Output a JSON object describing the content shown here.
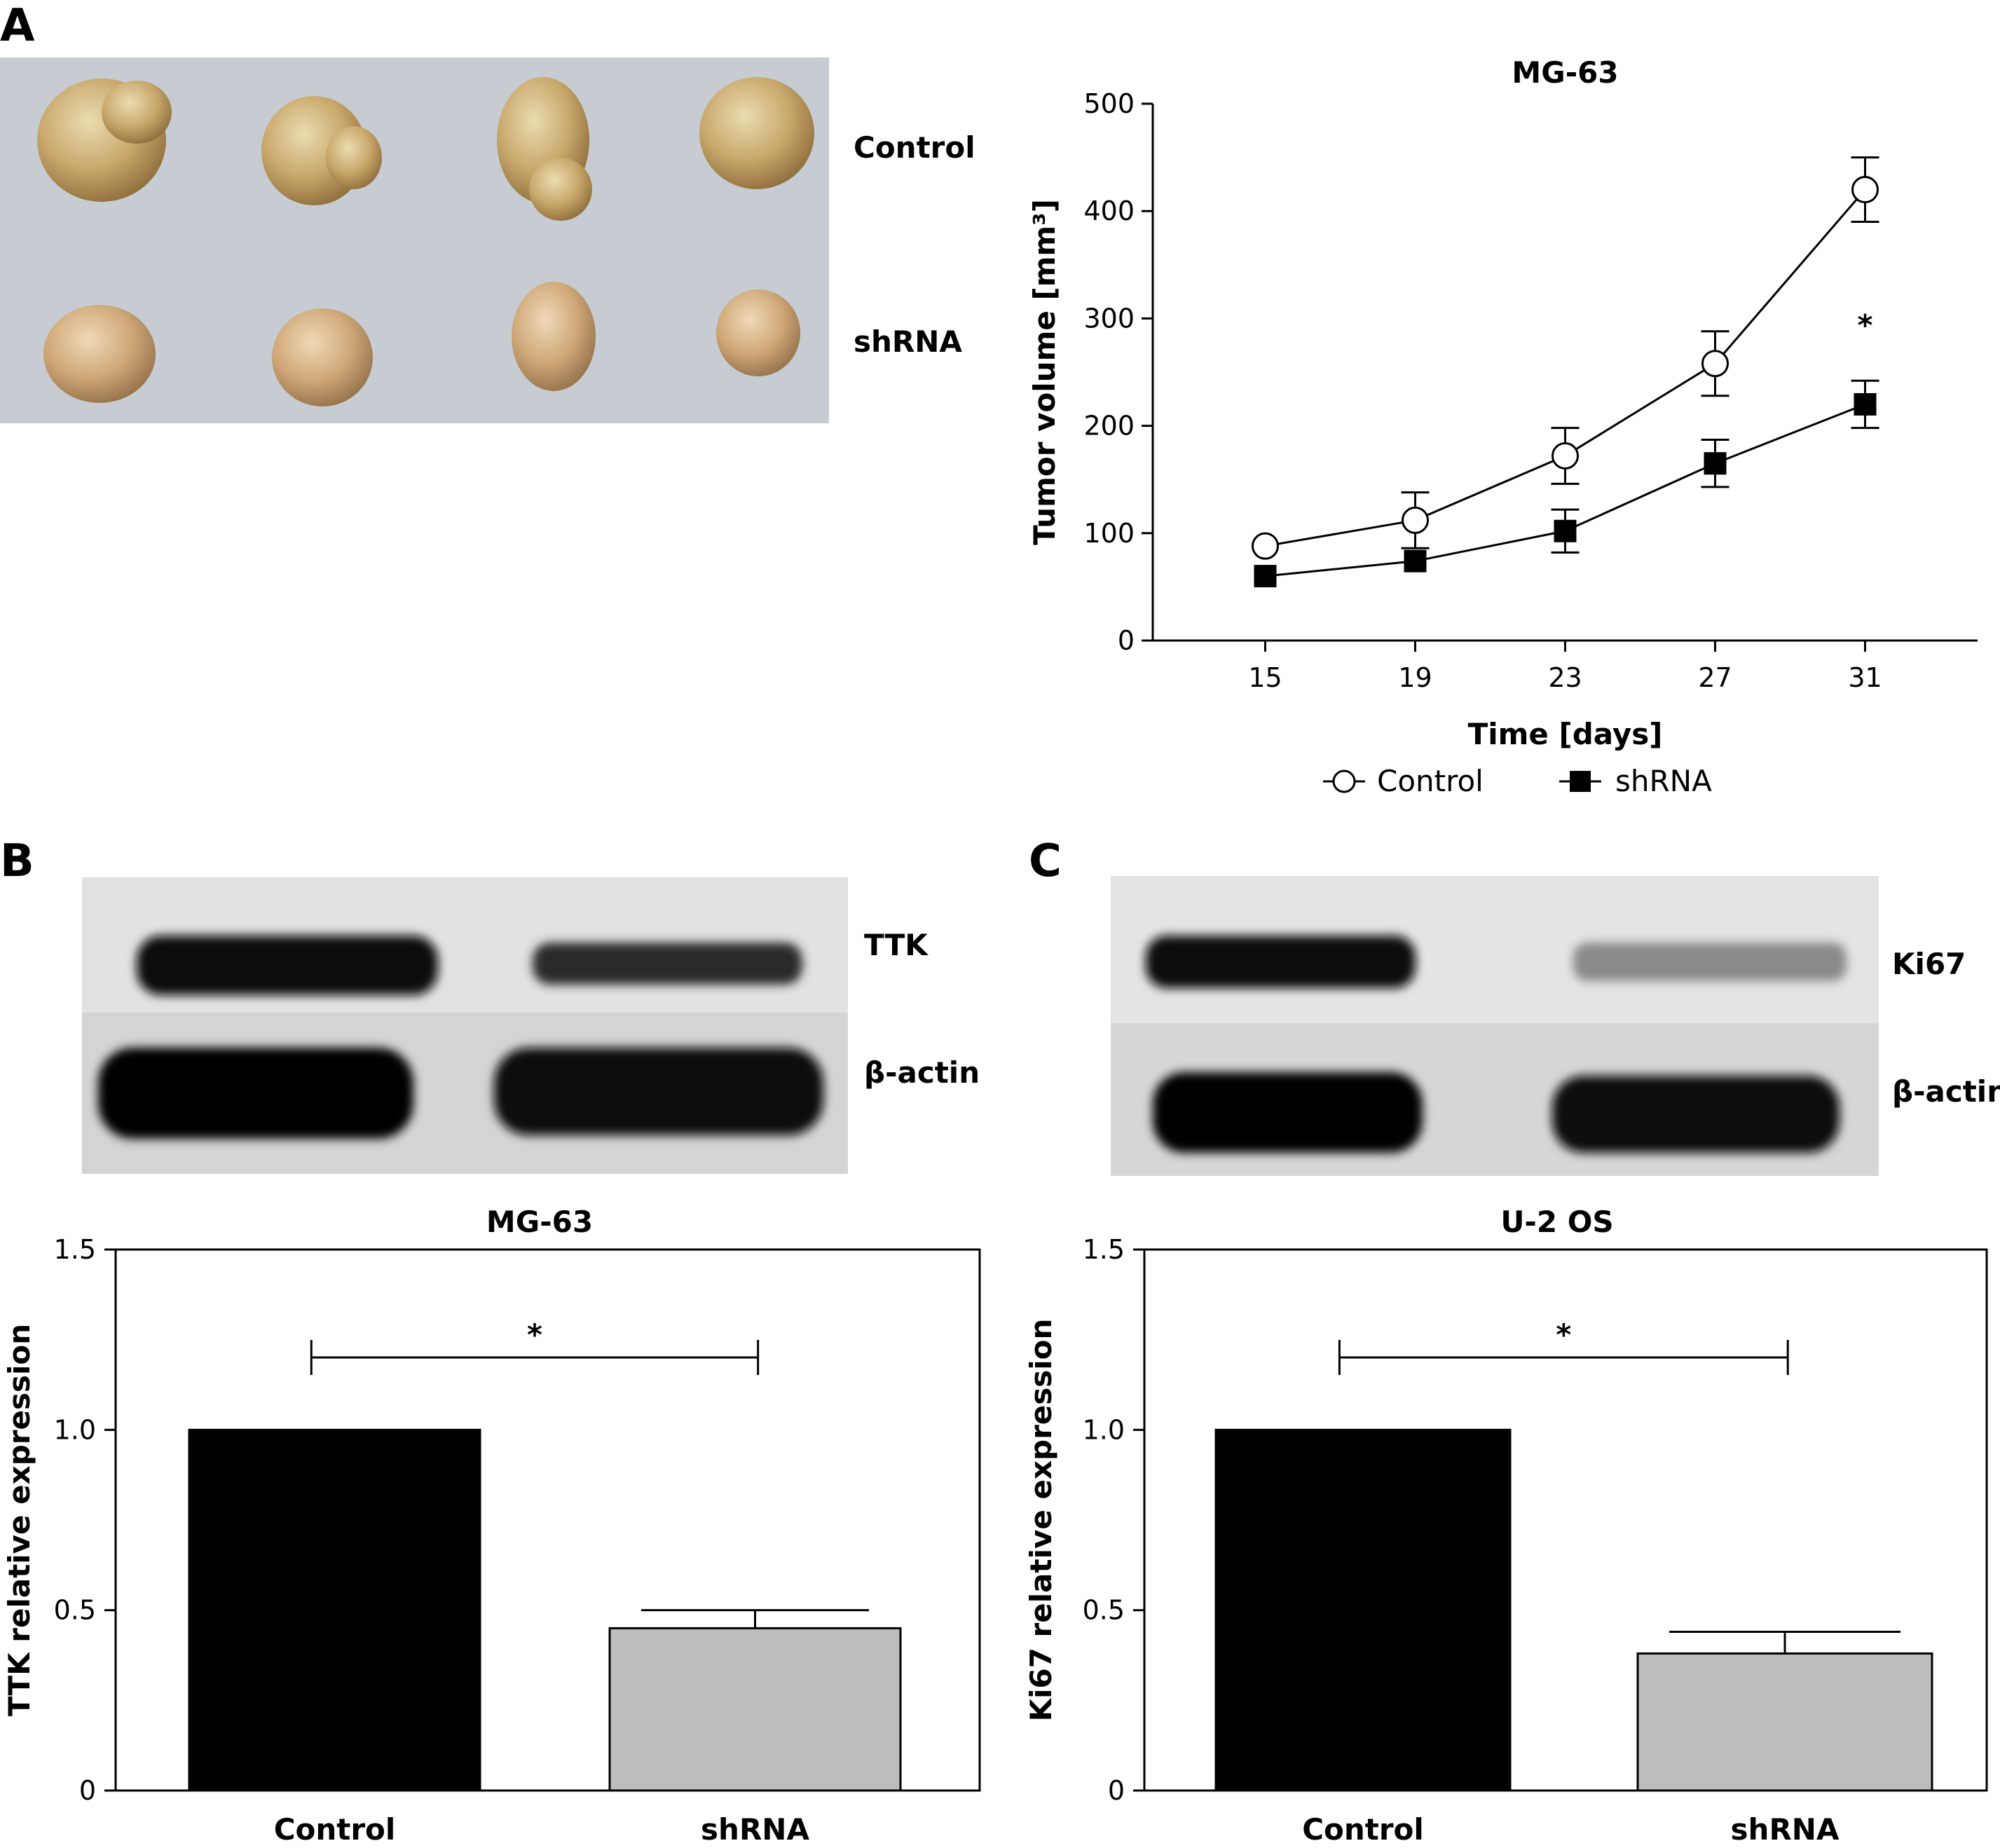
{
  "panels": {
    "a": {
      "letter": "A",
      "photo_labels": [
        "Control",
        "shRNA"
      ]
    },
    "b": {
      "letter": "B",
      "blot_labels": [
        "TTK",
        "β-actin"
      ]
    },
    "c": {
      "letter": "C",
      "blot_labels": [
        "Ki67",
        "β-actin"
      ]
    }
  },
  "chart_data": [
    {
      "id": "tumor-growth",
      "type": "line",
      "title": "MG-63",
      "xlabel": "Time [days]",
      "ylabel": "Tumor volume [mm³]",
      "x": [
        15,
        19,
        23,
        27,
        31
      ],
      "xlim": [
        12,
        34
      ],
      "ylim": [
        0,
        500
      ],
      "yticks": [
        0,
        100,
        200,
        300,
        400,
        500
      ],
      "series": [
        {
          "name": "Control",
          "marker": "open-circle",
          "values": [
            88,
            112,
            172,
            258,
            420
          ],
          "errors": [
            0,
            26,
            26,
            30,
            30
          ]
        },
        {
          "name": "shRNA",
          "marker": "filled-square",
          "values": [
            60,
            74,
            102,
            165,
            220
          ],
          "errors": [
            0,
            0,
            20,
            22,
            22
          ]
        }
      ],
      "annotation": "*",
      "legend_position": "bottom-center",
      "grid": false
    },
    {
      "id": "ttk-expression",
      "type": "bar",
      "title": "MG-63",
      "ylabel": "TTK relative expression",
      "categories": [
        "Control",
        "shRNA"
      ],
      "values": [
        1.0,
        0.45
      ],
      "errors": [
        0,
        0.05
      ],
      "colors": [
        "#000000",
        "#bdbdbd"
      ],
      "ylim": [
        0,
        1.5
      ],
      "yticks": [
        "0",
        "0.5",
        "1.0",
        "1.5"
      ],
      "annotation": "*",
      "grid": false
    },
    {
      "id": "ki67-expression",
      "type": "bar",
      "title": "U-2 OS",
      "ylabel": "Ki67 relative expression",
      "categories": [
        "Control",
        "shRNA"
      ],
      "values": [
        1.0,
        0.38
      ],
      "errors": [
        0,
        0.06
      ],
      "colors": [
        "#000000",
        "#bdbdbd"
      ],
      "ylim": [
        0,
        1.5
      ],
      "yticks": [
        "0",
        "0.5",
        "1.0",
        "1.5"
      ],
      "annotation": "*",
      "grid": false
    }
  ]
}
